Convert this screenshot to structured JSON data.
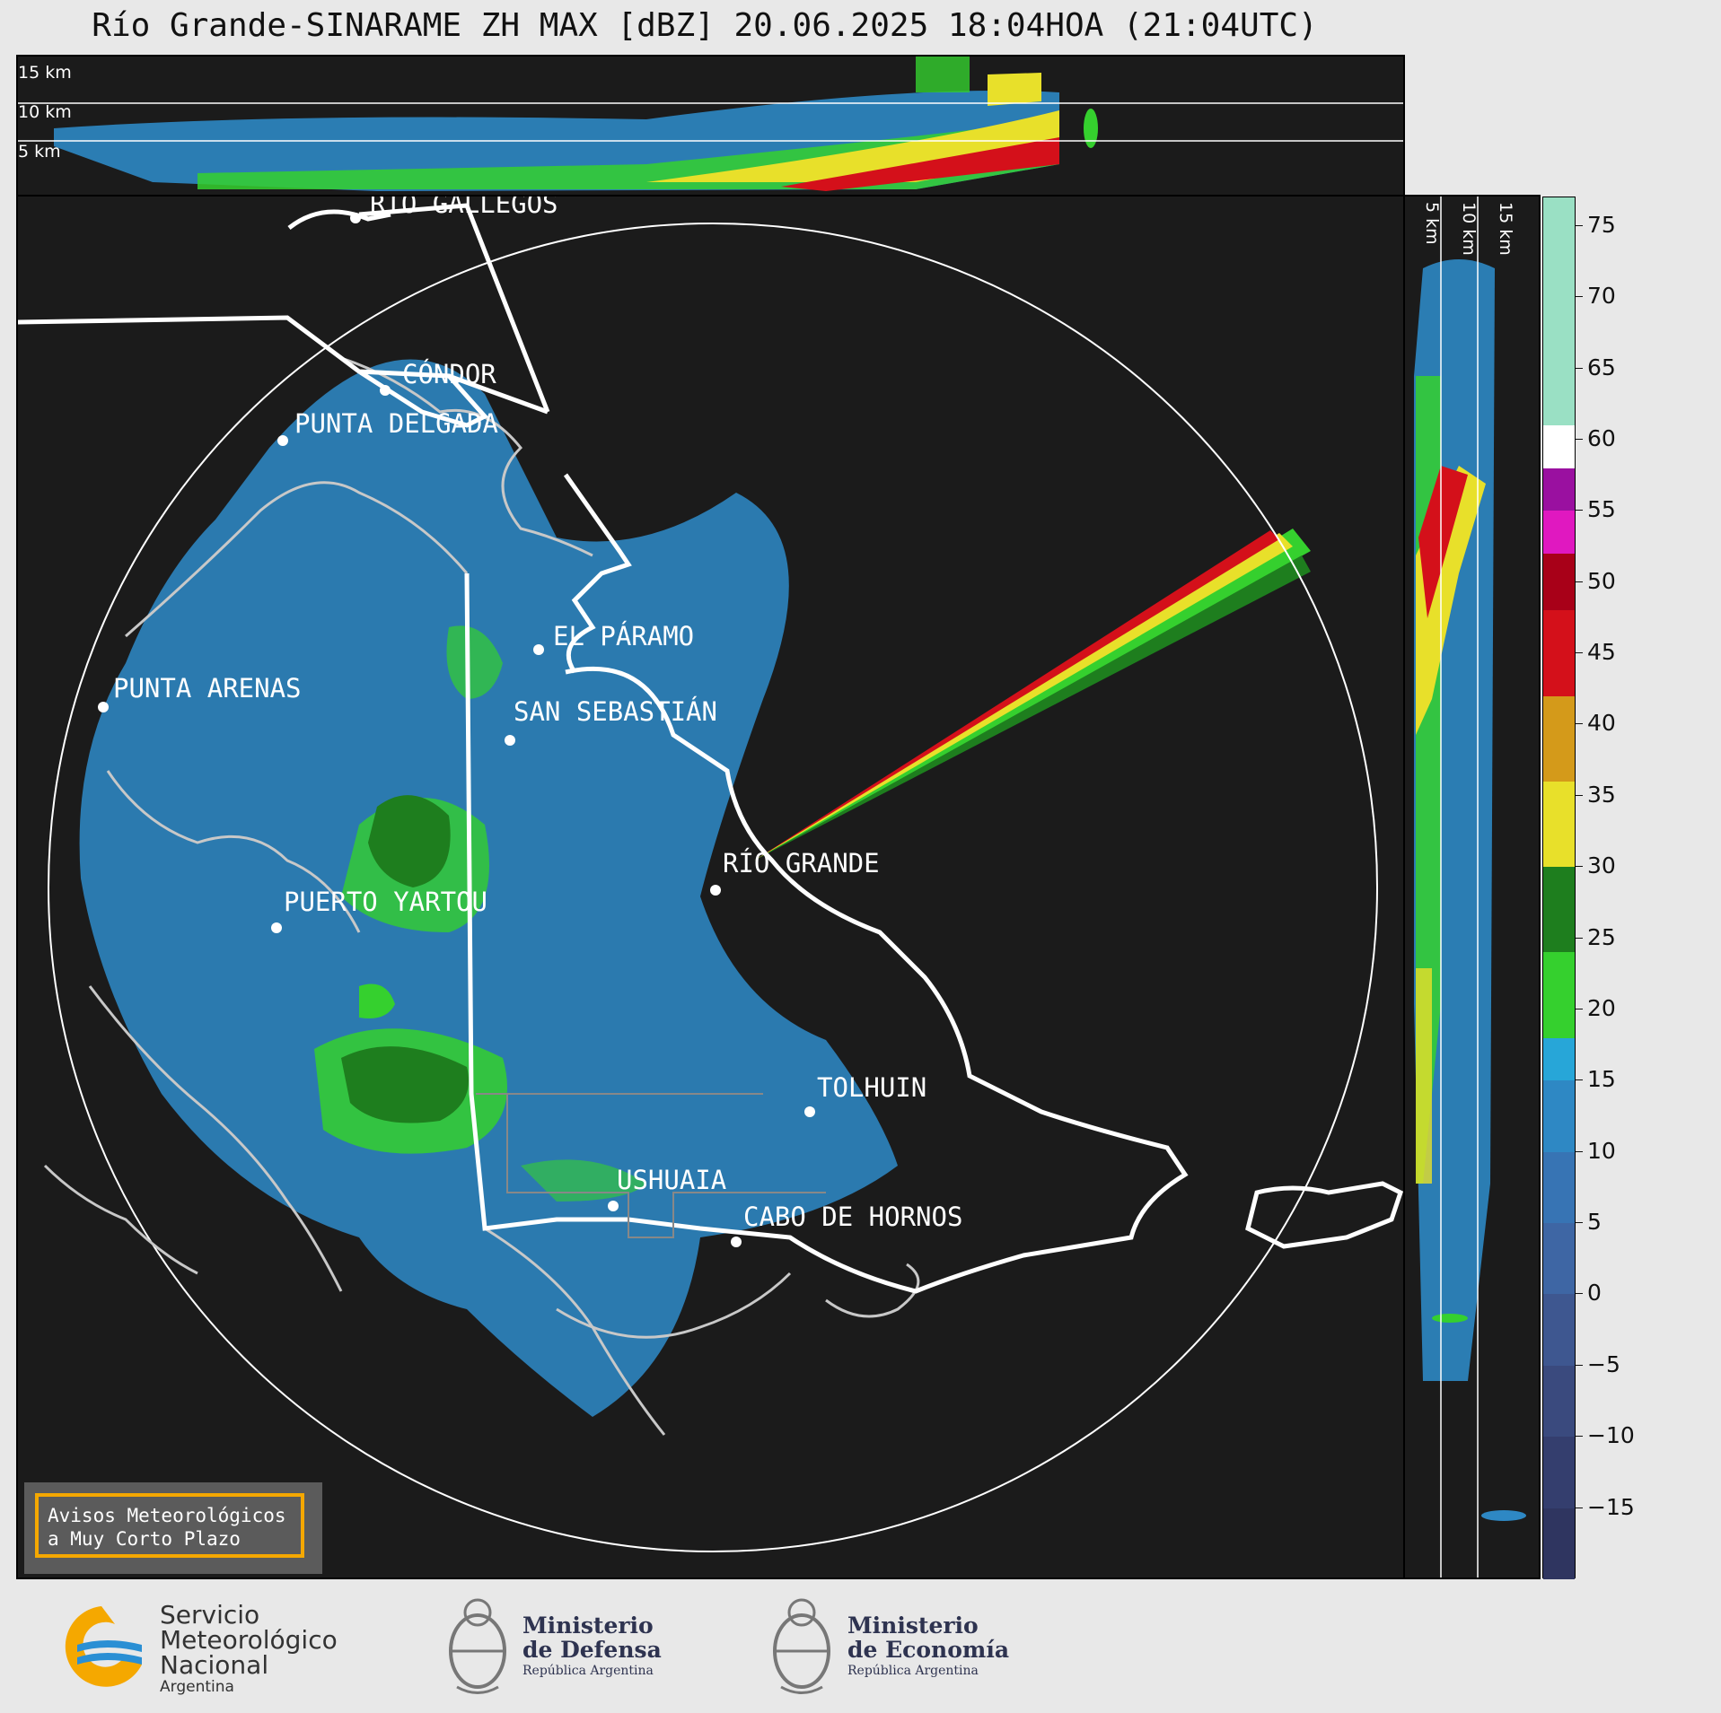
{
  "title": "Río Grande-SINARAME ZH MAX [dBZ] 20.06.2025 18:04HOA (21:04UTC)",
  "top_panel_levels": [
    "15 km",
    "10 km",
    "5 km"
  ],
  "side_panel_levels": [
    "5 km",
    "10 km",
    "15 km"
  ],
  "places": [
    {
      "id": "rio-gallegos",
      "label": "RÍO GALLEGOS"
    },
    {
      "id": "condor",
      "label": "CÓNDOR"
    },
    {
      "id": "punta-delgada",
      "label": "PUNTA DELGADA"
    },
    {
      "id": "el-paramo",
      "label": "EL PÁRAMO"
    },
    {
      "id": "punta-arenas",
      "label": "PUNTA ARENAS"
    },
    {
      "id": "san-sebastian",
      "label": "SAN SEBASTIÁN"
    },
    {
      "id": "rio-grande",
      "label": "RÍO GRANDE"
    },
    {
      "id": "puerto-yartou",
      "label": "PUERTO YARTOU"
    },
    {
      "id": "tolhuin",
      "label": "TOLHUIN"
    },
    {
      "id": "ushuaia",
      "label": "USHUAIA"
    },
    {
      "id": "cabo-de-hornos",
      "label": "CABO DE HORNOS"
    }
  ],
  "colorbar": {
    "unit": "dBZ",
    "ticks": [
      "75",
      "70",
      "65",
      "60",
      "55",
      "50",
      "45",
      "40",
      "35",
      "30",
      "25",
      "20",
      "15",
      "10",
      "5",
      "0",
      "−5",
      "−10",
      "−15"
    ],
    "range": [
      -20,
      77
    ],
    "stops": [
      {
        "from": -20,
        "to": -15,
        "color": "#2f3560"
      },
      {
        "from": -15,
        "to": -10,
        "color": "#343e6e"
      },
      {
        "from": -10,
        "to": -5,
        "color": "#3a4a7e"
      },
      {
        "from": -5,
        "to": 0,
        "color": "#3e5790"
      },
      {
        "from": 0,
        "to": 5,
        "color": "#3e66a4"
      },
      {
        "from": 5,
        "to": 10,
        "color": "#3774b4"
      },
      {
        "from": 10,
        "to": 15,
        "color": "#2e88c4"
      },
      {
        "from": 15,
        "to": 18,
        "color": "#27a6d8"
      },
      {
        "from": 18,
        "to": 24,
        "color": "#35d02e"
      },
      {
        "from": 24,
        "to": 30,
        "color": "#1e7e1e"
      },
      {
        "from": 30,
        "to": 36,
        "color": "#e8e02a"
      },
      {
        "from": 36,
        "to": 42,
        "color": "#d49a1a"
      },
      {
        "from": 42,
        "to": 48,
        "color": "#d4101a"
      },
      {
        "from": 48,
        "to": 52,
        "color": "#a80018"
      },
      {
        "from": 52,
        "to": 55,
        "color": "#e018c0"
      },
      {
        "from": 55,
        "to": 58,
        "color": "#9a10a0"
      },
      {
        "from": 58,
        "to": 61,
        "color": "#ffffff"
      },
      {
        "from": 61,
        "to": 77,
        "color": "#9ae0c4"
      }
    ]
  },
  "warning_box": {
    "line1": "Avisos Meteorológicos",
    "line2": "a Muy Corto Plazo"
  },
  "logos": {
    "smn": {
      "line1": "Servicio",
      "line2": "Meteorológico",
      "line3": "Nacional",
      "line4": "Argentina"
    },
    "defensa": {
      "line1": "Ministerio",
      "line2": "de Defensa",
      "line3": "República Argentina"
    },
    "economia": {
      "line1": "Ministerio",
      "line2": "de Economía",
      "line3": "República Argentina"
    }
  },
  "colors": {
    "background": "#1b1b1b",
    "page": "#e8e8e8",
    "accent": "#f5a800",
    "smn_blue": "#2a8fd4",
    "smn_orange": "#f5a800"
  }
}
